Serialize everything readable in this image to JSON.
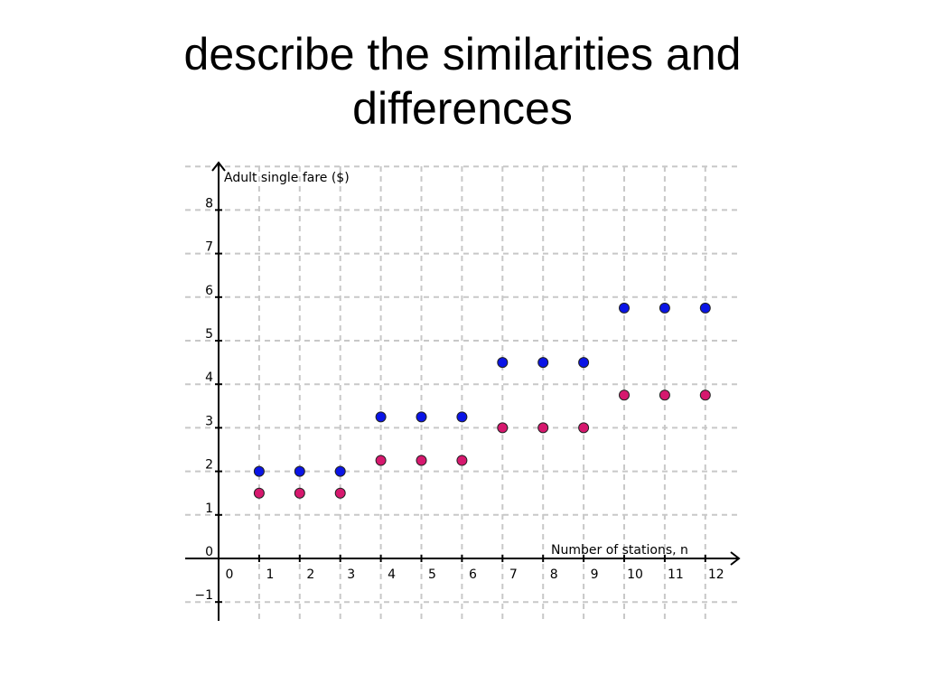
{
  "slide": {
    "title_line1": "describe the similarities and",
    "title_line2": "differences"
  },
  "colors": {
    "series_blue": "#0a14e6",
    "series_magenta": "#d6186e",
    "grid": "#c8c8c8",
    "axis": "#000000"
  },
  "chart_data": {
    "type": "scatter",
    "title": "",
    "xlabel": "Number of stations, n",
    "ylabel": "Adult single fare ($)",
    "xlim": [
      -1,
      13
    ],
    "ylim": [
      -1,
      9
    ],
    "x_ticks": [
      0,
      1,
      2,
      3,
      4,
      5,
      6,
      7,
      8,
      9,
      10,
      11,
      12
    ],
    "y_ticks": [
      -1,
      0,
      1,
      2,
      3,
      4,
      5,
      6,
      7,
      8
    ],
    "grid": true,
    "legend": "none",
    "series": [
      {
        "color": "#0a14e6",
        "x": [
          1,
          2,
          3,
          4,
          5,
          6,
          7,
          8,
          9,
          10,
          11,
          12
        ],
        "y": [
          2.0,
          2.0,
          2.0,
          3.25,
          3.25,
          3.25,
          4.5,
          4.5,
          4.5,
          5.75,
          5.75,
          5.75
        ]
      },
      {
        "color": "#d6186e",
        "x": [
          1,
          2,
          3,
          4,
          5,
          6,
          7,
          8,
          9,
          10,
          11,
          12
        ],
        "y": [
          1.5,
          1.5,
          1.5,
          2.25,
          2.25,
          2.25,
          3.0,
          3.0,
          3.0,
          3.75,
          3.75,
          3.75
        ]
      }
    ]
  }
}
